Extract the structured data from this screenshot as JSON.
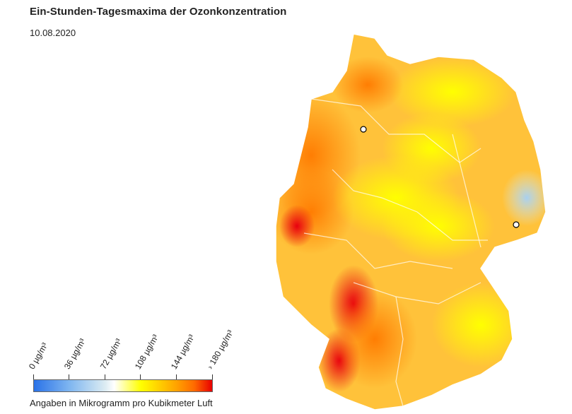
{
  "header": {
    "title": "Ein-Stunden-Tagesmaxima der Ozonkonzentration",
    "date": "10.08.2020"
  },
  "legend": {
    "ticks": [
      "0 µg/m³",
      "36 µg/m³",
      "72 µg/m³",
      "108 µg/m³",
      "144 µg/m³",
      "› 180 µg/m³"
    ],
    "colors": [
      "#2a72e8",
      "#7fb6f0",
      "#ffffff",
      "#ffff00",
      "#ffa200",
      "#e80000"
    ],
    "caption": "Angaben in Mikrogramm pro Kubikmeter Luft"
  },
  "map": {
    "region": "Deutschland",
    "markers": [
      "city-marker",
      "city-marker"
    ]
  }
}
